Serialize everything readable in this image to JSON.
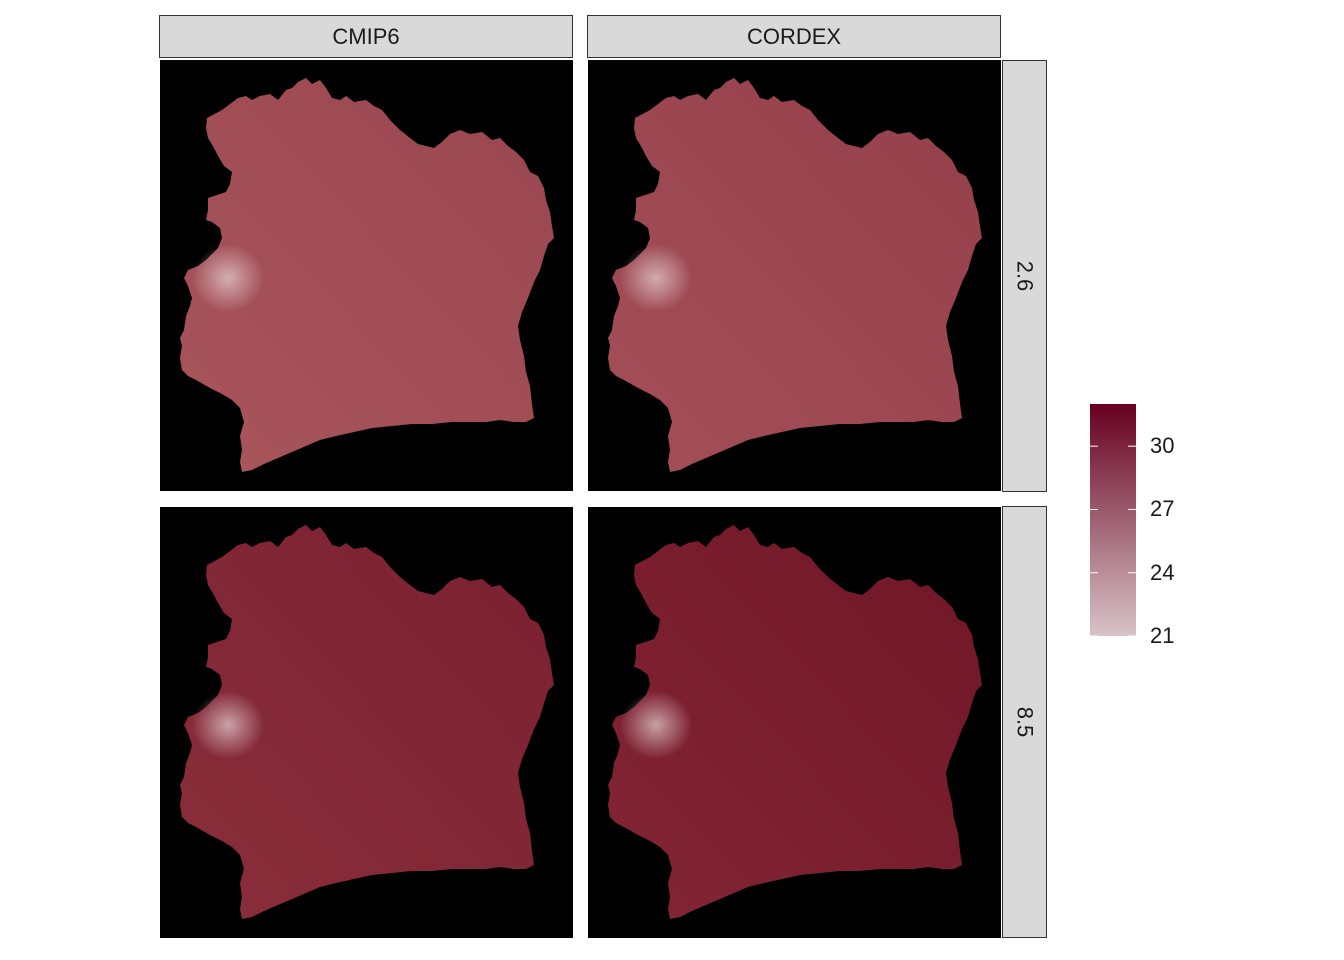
{
  "columns": [
    {
      "label": "CMIP6"
    },
    {
      "label": "CORDEX"
    }
  ],
  "rows": [
    {
      "label": "2.6"
    },
    {
      "label": "8.5"
    }
  ],
  "panels": [
    {
      "model": "CMIP6",
      "scenario": "2.6",
      "fill": "#a9555c",
      "fill_dark": "#9a4650"
    },
    {
      "model": "CORDEX",
      "scenario": "2.6",
      "fill": "#a44f58",
      "fill_dark": "#943f4a"
    },
    {
      "model": "CMIP6",
      "scenario": "8.5",
      "fill": "#8a2e3b",
      "fill_dark": "#7a2030"
    },
    {
      "model": "CORDEX",
      "scenario": "8.5",
      "fill": "#832635",
      "fill_dark": "#701626"
    }
  ],
  "legend": {
    "min": 21,
    "max": 32,
    "ticks": [
      {
        "value": 21,
        "label": "21"
      },
      {
        "value": 24,
        "label": "24"
      },
      {
        "value": 27,
        "label": "27"
      },
      {
        "value": 30,
        "label": "30"
      }
    ],
    "color_low": "#d8c3c6",
    "color_high": "#67001f"
  },
  "colors": {
    "panel_background": "#000000",
    "strip_background": "#d9d9d9"
  }
}
